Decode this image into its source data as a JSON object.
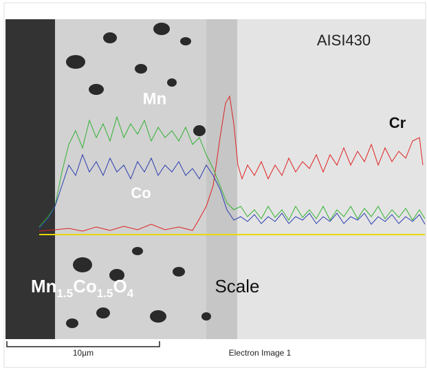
{
  "labels": {
    "substrate": "AISI430",
    "mn": "Mn",
    "cr": "Cr",
    "co": "Co",
    "scale": "Scale",
    "formula": [
      "Mn",
      "1.5",
      "Co",
      "1.5",
      "O",
      "4"
    ]
  },
  "footer": {
    "scale_bar": "10µm",
    "caption": "Electron Image 1"
  }
}
